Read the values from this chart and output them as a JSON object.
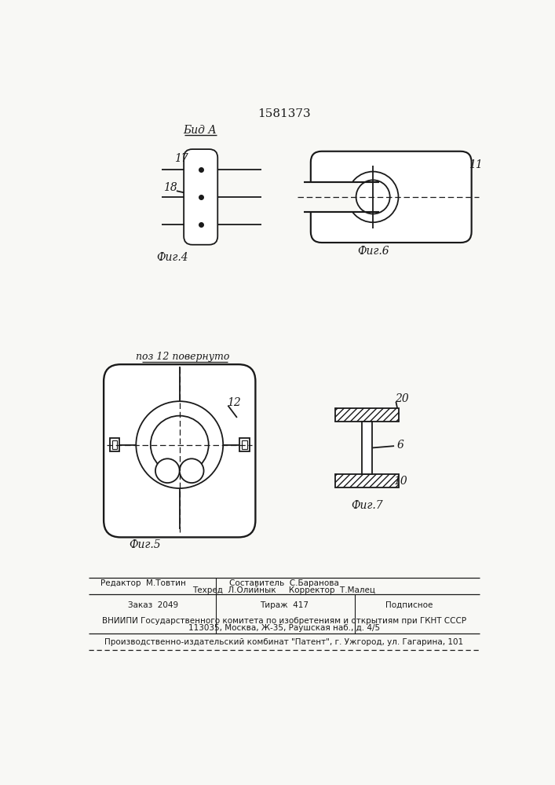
{
  "patent_number": "1581373",
  "background_color": "#f8f8f5",
  "line_color": "#1a1a1a",
  "fig4_label": "Фиг.4",
  "fig4_sublabel": "Бид А",
  "fig5_label": "Фиг.5",
  "fig6_label": "Фиг.6",
  "fig7_label": "Фиг.7",
  "pos12_text": "поз 12 повернуто"
}
